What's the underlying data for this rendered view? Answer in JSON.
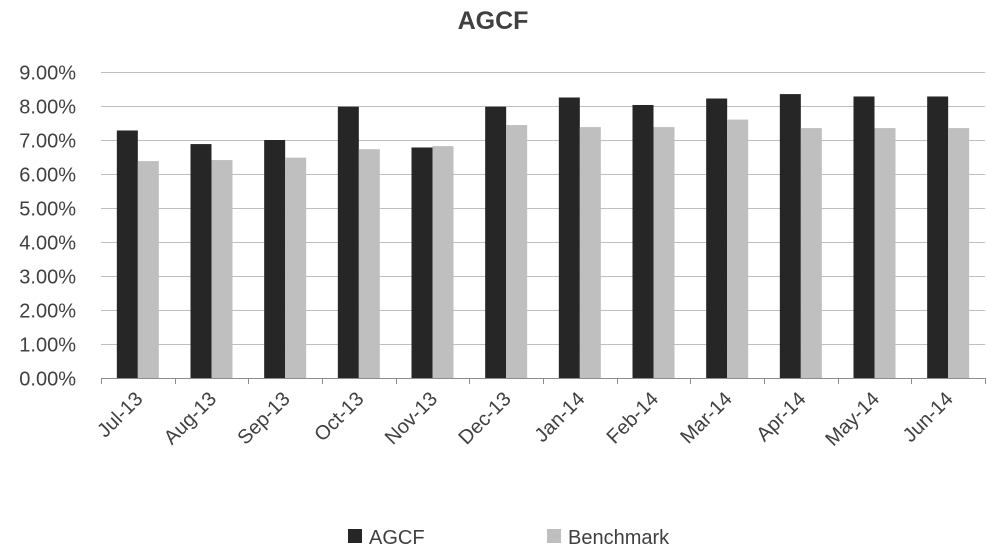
{
  "chart_data": {
    "type": "bar",
    "title": "AGCF",
    "xlabel": "",
    "ylabel": "",
    "categories": [
      "Jul-13",
      "Aug-13",
      "Sep-13",
      "Oct-13",
      "Nov-13",
      "Dec-13",
      "Jan-14",
      "Feb-14",
      "Mar-14",
      "Apr-14",
      "May-14",
      "Jun-14"
    ],
    "series": [
      {
        "name": "AGCF",
        "color": "#262626",
        "values": [
          7.28,
          6.88,
          7.0,
          7.98,
          6.78,
          7.98,
          8.25,
          8.03,
          8.22,
          8.35,
          8.28,
          8.28
        ]
      },
      {
        "name": "Benchmark",
        "color": "#bfbfbf",
        "values": [
          6.38,
          6.41,
          6.48,
          6.73,
          6.82,
          7.44,
          7.38,
          7.38,
          7.6,
          7.35,
          7.35,
          7.35
        ]
      }
    ],
    "ylim": [
      0,
      9
    ],
    "y_ticks": [
      "0.00%",
      "1.00%",
      "2.00%",
      "3.00%",
      "4.00%",
      "5.00%",
      "6.00%",
      "7.00%",
      "8.00%",
      "9.00%"
    ],
    "grid": true,
    "legend_position": "bottom"
  }
}
